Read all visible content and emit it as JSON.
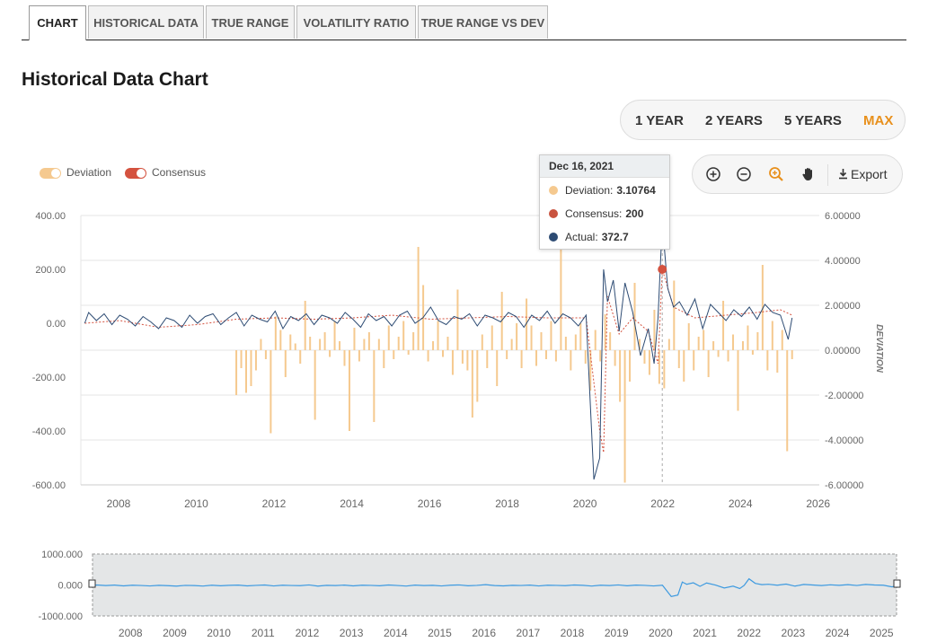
{
  "tabs": [
    {
      "label": "CHART",
      "active": true
    },
    {
      "label": "HISTORICAL DATA",
      "active": false
    },
    {
      "label": "TRUE RANGE",
      "active": false
    },
    {
      "label": "VOLATILITY RATIO",
      "active": false
    },
    {
      "label": "TRUE RANGE VS DEV",
      "active": false
    }
  ],
  "page_title": "Historical Data Chart",
  "ranges": [
    {
      "label": "1 YEAR",
      "active": false
    },
    {
      "label": "2 YEARS",
      "active": false
    },
    {
      "label": "5 YEARS",
      "active": false
    },
    {
      "label": "MAX",
      "active": true
    }
  ],
  "toolbar": {
    "export_label": "Export"
  },
  "legend": [
    {
      "label": "Deviation",
      "color": "#f5c98f"
    },
    {
      "label": "Consensus",
      "color": "#d4523f"
    }
  ],
  "tooltip": {
    "date": "Dec 16, 2021",
    "rows": [
      {
        "label": "Deviation:",
        "value": "3.10764",
        "color": "#f5c98f"
      },
      {
        "label": "Consensus:",
        "value": "200",
        "color": "#c9533f"
      },
      {
        "label": "Actual:",
        "value": "372.7",
        "color": "#2d4b73"
      }
    ]
  },
  "colors": {
    "actual": "#2d4b73",
    "consensus": "#d4523f",
    "deviation": "#f5c98f",
    "navigator": "#3d9ae0"
  },
  "chart_data": [
    {
      "type": "line+bar",
      "ylabel_right": "DEVIATION",
      "y_left_ticks": [
        "400.00",
        "200.00",
        "0.00",
        "-200.00",
        "-400.00",
        "-600.00"
      ],
      "y_right_ticks": [
        "6.00000",
        "4.00000",
        "2.00000",
        "0.00000",
        "-2.00000",
        "-4.00000",
        "-6.00000"
      ],
      "x_ticks": [
        "2008",
        "2010",
        "2012",
        "2014",
        "2016",
        "2018",
        "2020",
        "2022",
        "2024",
        "2026"
      ],
      "ylim_left": [
        -600,
        400
      ],
      "ylim_right": [
        -6,
        6
      ],
      "xlim": [
        2007.0,
        2026.0
      ],
      "series": [
        {
          "name": "Actual",
          "x": [
            2007.1,
            2007.2,
            2007.4,
            2007.6,
            2007.8,
            2008.0,
            2008.2,
            2008.4,
            2008.6,
            2008.8,
            2009.0,
            2009.2,
            2009.4,
            2009.6,
            2009.8,
            2010.0,
            2010.2,
            2010.4,
            2010.6,
            2010.8,
            2011.0,
            2011.2,
            2011.4,
            2011.6,
            2011.8,
            2012.0,
            2012.2,
            2012.4,
            2012.6,
            2012.8,
            2013.0,
            2013.2,
            2013.4,
            2013.6,
            2013.8,
            2014.0,
            2014.2,
            2014.4,
            2014.6,
            2014.8,
            2015.0,
            2015.2,
            2015.4,
            2015.6,
            2015.8,
            2016.0,
            2016.2,
            2016.4,
            2016.6,
            2016.8,
            2017.0,
            2017.2,
            2017.4,
            2017.6,
            2017.8,
            2018.0,
            2018.2,
            2018.4,
            2018.6,
            2018.8,
            2019.0,
            2019.2,
            2019.4,
            2019.6,
            2019.8,
            2020.0,
            2020.2,
            2020.35,
            2020.45,
            2020.55,
            2020.7,
            2020.85,
            2021.0,
            2021.2,
            2021.4,
            2021.6,
            2021.75,
            2021.85,
            2021.96,
            2022.1,
            2022.25,
            2022.4,
            2022.6,
            2022.8,
            2023.0,
            2023.2,
            2023.4,
            2023.6,
            2023.8,
            2024.0,
            2024.2,
            2024.4,
            2024.6,
            2024.8,
            2025.0,
            2025.2,
            2025.3
          ],
          "values": [
            0,
            40,
            10,
            35,
            -5,
            30,
            15,
            -10,
            25,
            5,
            -20,
            20,
            10,
            -15,
            30,
            0,
            25,
            35,
            -5,
            20,
            40,
            -10,
            30,
            15,
            5,
            45,
            -20,
            25,
            10,
            35,
            -5,
            30,
            20,
            0,
            40,
            15,
            -15,
            35,
            10,
            25,
            -10,
            30,
            45,
            0,
            20,
            60,
            10,
            -5,
            25,
            15,
            35,
            -10,
            30,
            20,
            5,
            40,
            25,
            -15,
            30,
            10,
            45,
            0,
            35,
            20,
            -10,
            30,
            -580,
            -500,
            200,
            80,
            160,
            -30,
            150,
            40,
            -120,
            -20,
            -150,
            20,
            372.7,
            130,
            60,
            80,
            30,
            90,
            -20,
            70,
            40,
            10,
            50,
            25,
            60,
            15,
            70,
            40,
            30,
            -60,
            20
          ],
          "color": "#2d4b73"
        },
        {
          "name": "Consensus",
          "x": [
            2007.1,
            2008.0,
            2009.0,
            2010.0,
            2011.0,
            2012.0,
            2013.0,
            2014.0,
            2015.0,
            2016.0,
            2017.0,
            2018.0,
            2019.0,
            2020.0,
            2020.35,
            2020.45,
            2020.55,
            2020.85,
            2021.2,
            2021.6,
            2021.85,
            2021.96,
            2022.25,
            2022.8,
            2023.6,
            2024.4,
            2025.0,
            2025.3
          ],
          "values": [
            0,
            10,
            -15,
            -5,
            15,
            20,
            15,
            20,
            30,
            15,
            20,
            25,
            20,
            20,
            -400,
            -480,
            100,
            -40,
            20,
            -30,
            -150,
            200,
            60,
            20,
            30,
            40,
            50,
            30
          ],
          "color": "#d4523f"
        },
        {
          "name": "Deviation",
          "axis": "right",
          "values": [
            -2.0,
            -0.8,
            -1.9,
            -1.6,
            -0.9,
            0.5,
            -0.4,
            -3.7,
            1.5,
            0.9,
            -1.2,
            0.7,
            0.3,
            -0.6,
            2.2,
            0.6,
            -3.1,
            0.5,
            0.8,
            -0.3,
            1.3,
            0.4,
            -0.7,
            -3.6,
            1.0,
            -0.5,
            0.5,
            0.8,
            -3.2,
            0.5,
            -0.8,
            1.1,
            -0.4,
            0.6,
            1.3,
            -0.2,
            0.8,
            4.6,
            2.9,
            -0.5,
            0.4,
            1.3,
            -0.3,
            0.6,
            -1.1,
            2.7,
            -0.6,
            -0.9,
            -3.0,
            -2.3,
            0.7,
            -0.8,
            1.1,
            -1.6,
            2.6,
            -0.4,
            0.5,
            1.2,
            -0.8,
            2.3,
            1.1,
            -0.7,
            0.8,
            -0.4,
            1.3,
            -0.5,
            4.8,
            0.6,
            -0.9,
            0.7,
            1.2,
            -0.6,
            -1.8,
            0.9,
            -0.5,
            1.6,
            0.8,
            -0.7,
            -2.3,
            -5.9,
            -1.4,
            3.0,
            0.5,
            -0.6,
            -1.1,
            1.8,
            -1.5,
            -1.7,
            0.5,
            3.1,
            -0.8,
            -1.4,
            1.2,
            -0.9,
            0.6,
            0.9,
            -1.2,
            0.4,
            -0.3,
            2.2,
            -0.5,
            0.7,
            -2.7,
            0.4,
            1.1,
            -0.2,
            0.8,
            3.8,
            -0.9,
            1.3,
            -1.0,
            0.9,
            -4.5,
            -0.4
          ],
          "color": "#f5c98f"
        }
      ],
      "annotation": {
        "date": "Dec 16, 2021",
        "x": 2021.96,
        "actual": 372.7,
        "consensus": 200
      }
    },
    {
      "type": "area",
      "name": "navigator",
      "y_ticks": [
        "1000.000",
        "0.000",
        "-1000.000"
      ],
      "x_ticks": [
        "2008",
        "2009",
        "2010",
        "2011",
        "2012",
        "2013",
        "2014",
        "2015",
        "2016",
        "2017",
        "2018",
        "2019",
        "2020",
        "2021",
        "2022",
        "2023",
        "2024",
        "2025"
      ],
      "ylim": [
        -1000,
        1000
      ],
      "xlim": [
        2007.1,
        2025.3
      ]
    }
  ]
}
